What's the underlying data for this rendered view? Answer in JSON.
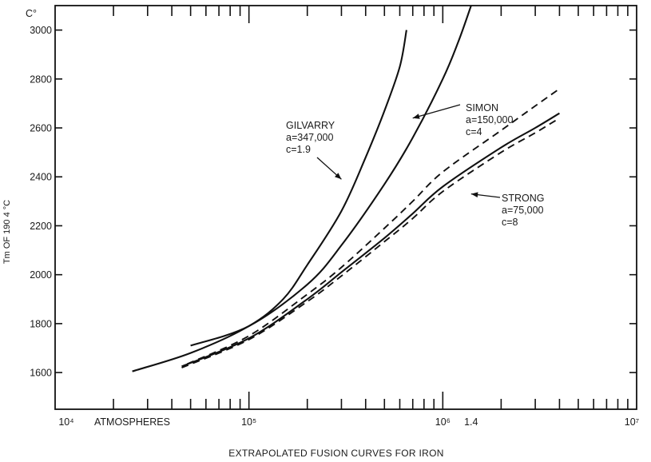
{
  "chart_data": {
    "type": "line",
    "title": "EXTRAPOLATED FUSION CURVES FOR IRON",
    "xlabel": "ATMOSPHERES",
    "ylabel": "Tm OF 190 4 °C",
    "y_unit": "C°",
    "x_scale": "log",
    "xlim": [
      10000,
      10000000
    ],
    "ylim": [
      1450,
      3100
    ],
    "grid": false,
    "x_tick_labels": [
      "10⁴",
      "10⁵",
      "10⁶",
      "1.4",
      "10⁷"
    ],
    "x_tick_values": [
      10000,
      100000,
      1000000,
      1400000,
      10000000
    ],
    "y_ticks": [
      1600,
      1800,
      2000,
      2200,
      2400,
      2600,
      2800,
      3000
    ],
    "series": [
      {
        "id": "gilvarry",
        "style": "solid",
        "x": [
          25000,
          50000,
          100000,
          150000,
          200000,
          300000,
          400000,
          500000,
          600000,
          650000
        ],
        "y": [
          1605,
          1680,
          1790,
          1900,
          2040,
          2260,
          2480,
          2670,
          2850,
          3000
        ]
      },
      {
        "id": "simon",
        "style": "solid",
        "x": [
          50000,
          100000,
          200000,
          300000,
          500000,
          700000,
          1000000,
          1200000,
          1400000
        ],
        "y": [
          1710,
          1790,
          1960,
          2120,
          2370,
          2560,
          2800,
          2950,
          3100
        ]
      },
      {
        "id": "strong",
        "style": "solid",
        "x": [
          45000,
          100000,
          200000,
          300000,
          500000,
          700000,
          1000000,
          2000000,
          3000000,
          4000000
        ],
        "y": [
          1625,
          1740,
          1900,
          2010,
          2150,
          2250,
          2360,
          2520,
          2600,
          2660
        ]
      },
      {
        "id": "dashed-upper",
        "style": "dashed",
        "x": [
          48000,
          100000,
          200000,
          300000,
          500000,
          700000,
          1000000,
          2000000,
          3000000,
          4000000
        ],
        "y": [
          1635,
          1750,
          1920,
          2030,
          2190,
          2300,
          2420,
          2590,
          2690,
          2760
        ]
      },
      {
        "id": "dashed-lower",
        "style": "dashed",
        "x": [
          45000,
          100000,
          200000,
          300000,
          500000,
          700000,
          1000000,
          2000000,
          3000000,
          4000000
        ],
        "y": [
          1620,
          1735,
          1890,
          1995,
          2135,
          2230,
          2340,
          2500,
          2580,
          2640
        ]
      }
    ],
    "annotations": [
      {
        "id": "gilvarry",
        "lines": [
          "GILVARRY",
          "a=347,000",
          "c=1.9"
        ],
        "target": [
          300000,
          2390
        ]
      },
      {
        "id": "simon",
        "lines": [
          "SIMON",
          "a=150,000",
          "c=4"
        ],
        "target": [
          700000,
          2640
        ]
      },
      {
        "id": "strong",
        "lines": [
          "STRONG",
          "a=75,000",
          "c=8"
        ],
        "target": [
          1400000,
          2330
        ]
      }
    ]
  }
}
